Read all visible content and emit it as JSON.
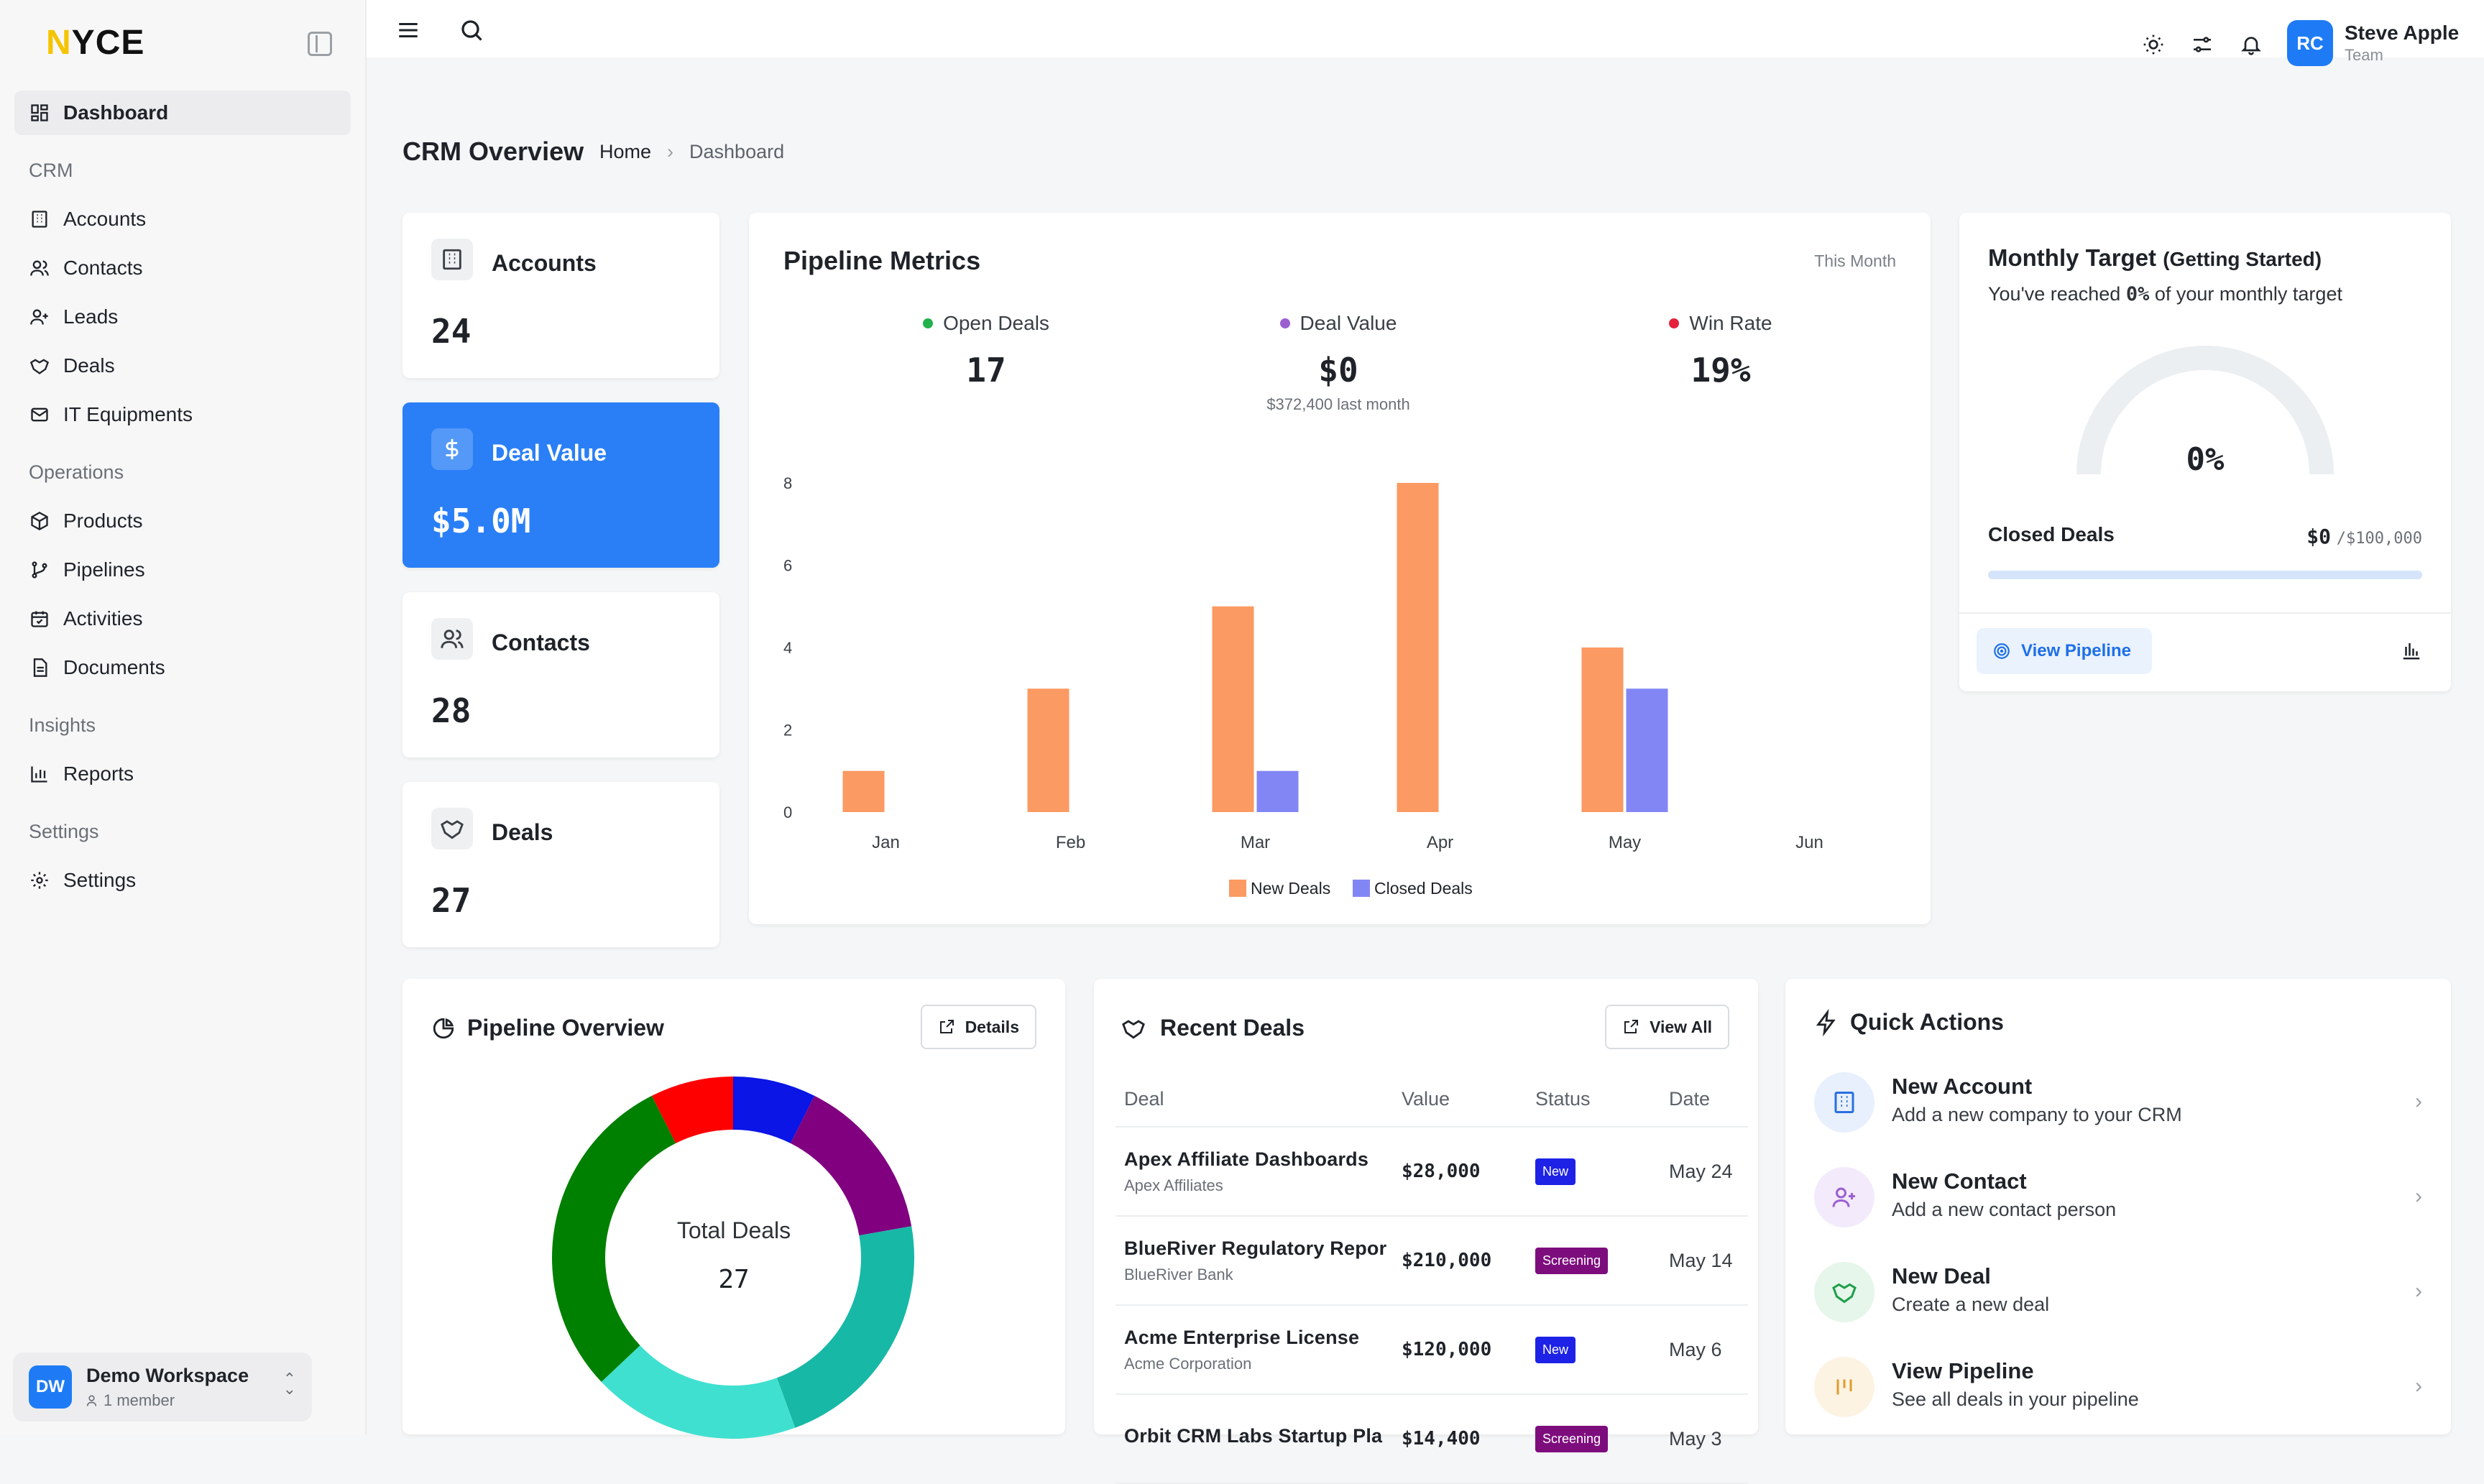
{
  "brand": {
    "logo_first": "N",
    "logo_rest": "YCE"
  },
  "sidebar": {
    "dashboard_label": "Dashboard",
    "sections": {
      "crm": "CRM",
      "operations": "Operations",
      "insights": "Insights",
      "settings": "Settings"
    },
    "items": {
      "accounts": "Accounts",
      "contacts": "Contacts",
      "leads": "Leads",
      "deals": "Deals",
      "it_equipments": "IT Equipments",
      "products": "Products",
      "pipelines": "Pipelines",
      "activities": "Activities",
      "documents": "Documents",
      "reports": "Reports",
      "settings": "Settings"
    },
    "workspace": {
      "initials": "DW",
      "name": "Demo Workspace",
      "members": "1 member"
    }
  },
  "topbar": {
    "user_initials": "RC",
    "user_name": "Steve Apple",
    "user_role": "Team"
  },
  "header": {
    "title": "CRM Overview",
    "breadcrumb": [
      "Home",
      "Dashboard"
    ]
  },
  "stats": [
    {
      "label": "Accounts",
      "value": "24"
    },
    {
      "label": "Deal Value",
      "value": "$5.0M"
    },
    {
      "label": "Contacts",
      "value": "28"
    },
    {
      "label": "Deals",
      "value": "27"
    }
  ],
  "pipeline_metrics": {
    "title": "Pipeline Metrics",
    "period": "This Month",
    "kpis": [
      {
        "label": "Open Deals",
        "value": "17",
        "sub": "",
        "color": "#22b14c"
      },
      {
        "label": "Deal Value",
        "value": "$0",
        "sub": "$372,400 last month",
        "color": "#9b5fd0"
      },
      {
        "label": "Win Rate",
        "value": "19%",
        "sub": "",
        "color": "#e5213e"
      }
    ]
  },
  "chart_data": {
    "type": "bar",
    "categories": [
      "Jan",
      "Feb",
      "Mar",
      "Apr",
      "May",
      "Jun"
    ],
    "series": [
      {
        "name": "New Deals",
        "values": [
          1,
          3,
          5,
          8,
          4,
          0
        ],
        "color": "#fb9a62"
      },
      {
        "name": "Closed Deals",
        "values": [
          0,
          0,
          1,
          0,
          3,
          0
        ],
        "color": "#8286f5"
      }
    ],
    "yticks": [
      0,
      2,
      4,
      6,
      8
    ],
    "ylim": [
      0,
      8
    ],
    "legend": "bottom"
  },
  "monthly_target": {
    "title": "Monthly Target",
    "title_sub": "(Getting Started)",
    "desc_prefix": "You've reached ",
    "desc_pct": "0%",
    "desc_suffix": " of your monthly target",
    "gauge_value": "0%",
    "progress": 0,
    "closed_label": "Closed Deals",
    "closed_value": "$0",
    "closed_target": "/$100,000",
    "button": "View Pipeline"
  },
  "pipeline_overview": {
    "title": "Pipeline Overview",
    "details_btn": "Details",
    "center_label": "Total Deals",
    "center_value": "27",
    "donut": [
      {
        "value": 2,
        "color": "#0a15e6"
      },
      {
        "value": 4,
        "color": "#800080"
      },
      {
        "value": 6,
        "color": "#17b8a6"
      },
      {
        "value": 5,
        "color": "#40e0d0"
      },
      {
        "value": 8,
        "color": "#008000"
      },
      {
        "value": 2,
        "color": "#ff0000"
      }
    ]
  },
  "recent_deals": {
    "title": "Recent Deals",
    "view_all": "View All",
    "columns": [
      "Deal",
      "Value",
      "Status",
      "Date"
    ],
    "rows": [
      {
        "name": "Apex Affiliate Dashboards",
        "account": "Apex Affiliates",
        "value": "$28,000",
        "status": "New",
        "status_color": "#1d22e6",
        "date": "May 24"
      },
      {
        "name": "BlueRiver Regulatory Repor",
        "account": "BlueRiver Bank",
        "value": "$210,000",
        "status": "Screening",
        "status_color": "#7d0d7d",
        "date": "May 14"
      },
      {
        "name": "Acme Enterprise License",
        "account": "Acme Corporation",
        "value": "$120,000",
        "status": "New",
        "status_color": "#1d22e6",
        "date": "May 6"
      },
      {
        "name": "Orbit CRM Labs Startup Pla",
        "account": "",
        "value": "$14,400",
        "status": "Screening",
        "status_color": "#7d0d7d",
        "date": "May 3"
      }
    ]
  },
  "quick_actions": {
    "title": "Quick Actions",
    "items": [
      {
        "title": "New Account",
        "desc": "Add a new company to your CRM",
        "bg": "#e8f0fd",
        "color": "#2a6fe0"
      },
      {
        "title": "New Contact",
        "desc": "Add a new contact person",
        "bg": "#f3eafc",
        "color": "#9b5fd0"
      },
      {
        "title": "New Deal",
        "desc": "Create a new deal",
        "bg": "#e6f6ea",
        "color": "#1e9e4a"
      },
      {
        "title": "View Pipeline",
        "desc": "See all deals in your pipeline",
        "bg": "#fdf3e3",
        "color": "#e49a2a"
      }
    ]
  }
}
